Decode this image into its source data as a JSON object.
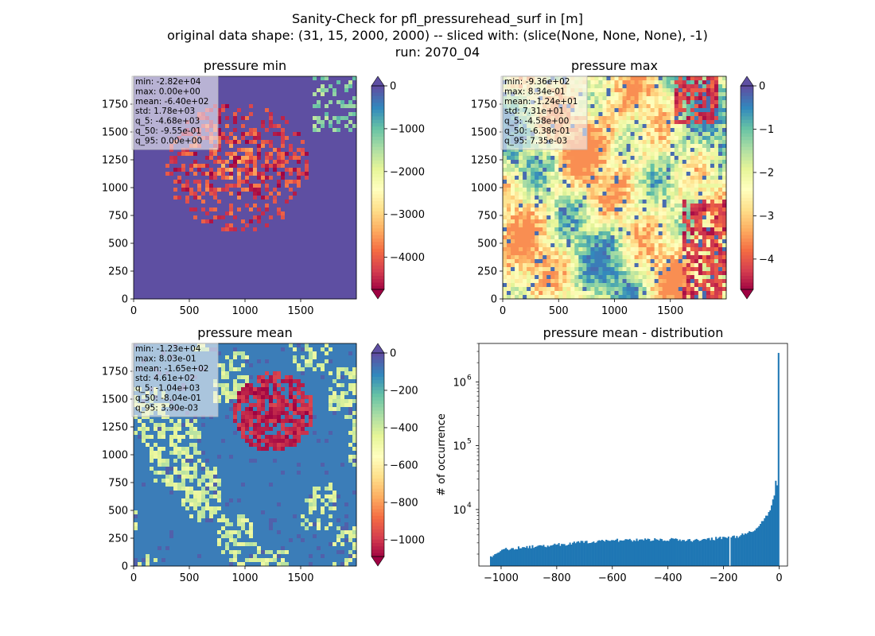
{
  "figure": {
    "title_lines": [
      "Sanity-Check for pfl_pressurehead_surf in [m]",
      "original data shape: (31, 15, 2000, 2000) -- sliced with: (slice(None, None, None), -1)",
      "run: 2070_04"
    ]
  },
  "chart_data": [
    {
      "type": "heatmap",
      "title": "pressure min",
      "colormap": "Spectral",
      "xlim": [
        0,
        2000
      ],
      "ylim": [
        0,
        2000
      ],
      "x_ticks": [
        0,
        500,
        1000,
        1500
      ],
      "y_ticks": [
        0,
        250,
        500,
        750,
        1000,
        1250,
        1500,
        1750
      ],
      "colorbar": {
        "range": [
          -4750,
          0
        ],
        "ticks": [
          0,
          -1000,
          -2000,
          -3000,
          -4000
        ],
        "tick_labels": [
          "0",
          "−1000",
          "−2000",
          "−3000",
          "−4000"
        ],
        "extend": "both"
      },
      "stats": [
        "min: -2.82e+04",
        "max: 0.00e+00",
        "mean: -6.40e+02",
        "std: 1.78e+03",
        "q_5: -4.68e+03",
        "q_50: -9.55e-01",
        "q_95: 0.00e+00"
      ]
    },
    {
      "type": "heatmap",
      "title": "pressure max",
      "colormap": "Spectral",
      "xlim": [
        0,
        2000
      ],
      "ylim": [
        0,
        2000
      ],
      "x_ticks": [
        0,
        500,
        1000,
        1500
      ],
      "y_ticks": [
        0,
        250,
        500,
        750,
        1000,
        1250,
        1500,
        1750
      ],
      "colorbar": {
        "range": [
          -4.7,
          0
        ],
        "ticks": [
          0,
          -1,
          -2,
          -3,
          -4
        ],
        "tick_labels": [
          "0",
          "−1",
          "−2",
          "−3",
          "−4"
        ],
        "extend": "both"
      },
      "stats": [
        "min: -9.36e+02",
        "max: 8.34e-01",
        "mean: -1.24e+01",
        "std: 7.31e+01",
        "q_5: -4.58e+00",
        "q_50: -6.38e-01",
        "q_95: 7.35e-03"
      ]
    },
    {
      "type": "heatmap",
      "title": "pressure mean",
      "colormap": "Spectral",
      "xlim": [
        0,
        2000
      ],
      "ylim": [
        0,
        2000
      ],
      "x_ticks": [
        0,
        500,
        1000,
        1500
      ],
      "y_ticks": [
        0,
        250,
        500,
        750,
        1000,
        1250,
        1500,
        1750
      ],
      "colorbar": {
        "range": [
          -1090,
          0
        ],
        "ticks": [
          0,
          -200,
          -400,
          -600,
          -800,
          -1000
        ],
        "tick_labels": [
          "0",
          "−200",
          "−400",
          "−600",
          "−800",
          "−1000"
        ],
        "extend": "both"
      },
      "stats": [
        "min: -1.23e+04",
        "max: 8.03e-01",
        "mean: -1.65e+02",
        "std: 4.61e+02",
        "q_5: -1.04e+03",
        "q_50: -8.04e-01",
        "q_95: 3.90e-03"
      ]
    },
    {
      "type": "bar",
      "title": "pressure mean - distribution",
      "ylabel": "# of occurrence",
      "xlabel": "",
      "y_scale": "log",
      "xlim": [
        -1080,
        30
      ],
      "ylim": [
        1300,
        4000000
      ],
      "x_ticks": [
        -1000,
        -800,
        -600,
        -400,
        -200,
        0
      ],
      "x_tick_labels": [
        "−1000",
        "−800",
        "−600",
        "−400",
        "−200",
        "0"
      ],
      "y_ticks": [
        10000,
        100000,
        1000000
      ],
      "y_tick_labels": [
        [
          "10",
          "4"
        ],
        [
          "10",
          "5"
        ],
        [
          "10",
          "6"
        ]
      ],
      "color": "#1f77b4",
      "bins": {
        "start": -1040,
        "end": 0,
        "profile": [
          [
            -1040,
            1800
          ],
          [
            -1000,
            2200
          ],
          [
            -980,
            2400
          ],
          [
            -900,
            2600
          ],
          [
            -800,
            2800
          ],
          [
            -700,
            3100
          ],
          [
            -600,
            3300
          ],
          [
            -500,
            3300
          ],
          [
            -400,
            3400
          ],
          [
            -300,
            3300
          ],
          [
            -200,
            3600
          ],
          [
            -150,
            3800
          ],
          [
            -120,
            4200
          ],
          [
            -100,
            4500
          ],
          [
            -80,
            5200
          ],
          [
            -60,
            6500
          ],
          [
            -40,
            8500
          ],
          [
            -30,
            10500
          ],
          [
            -20,
            15000
          ],
          [
            -15,
            20000
          ],
          [
            -10,
            38000
          ],
          [
            -5,
            15000
          ],
          [
            0,
            2700000
          ]
        ]
      }
    }
  ]
}
